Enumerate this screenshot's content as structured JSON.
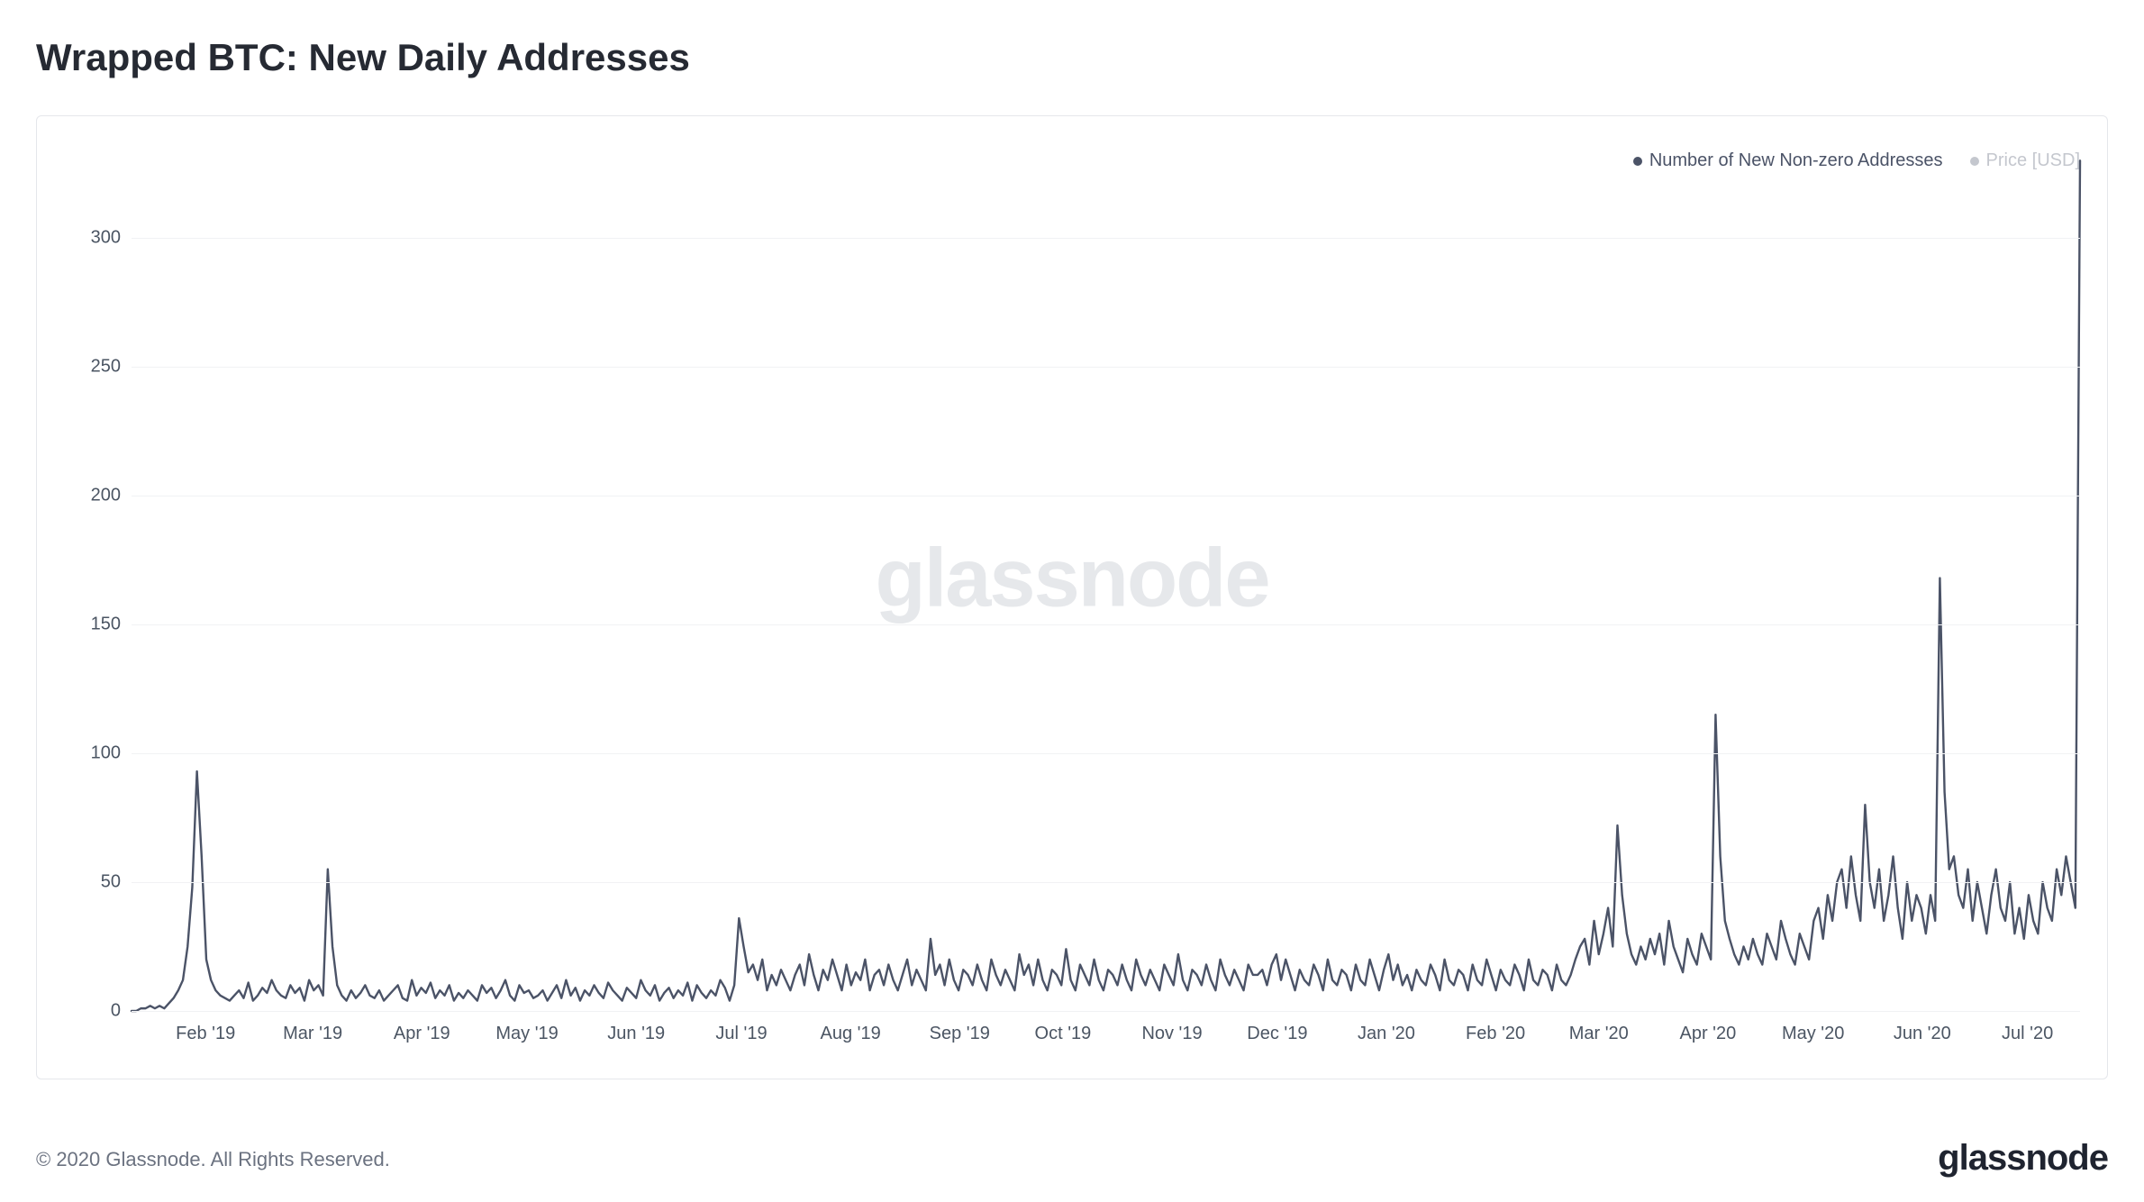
{
  "title": "Wrapped BTC: New Daily Addresses",
  "watermark": "glassnode",
  "legend": {
    "series1": {
      "label": "Number of New Non-zero Addresses",
      "color": "#4b5367"
    },
    "series2": {
      "label": "Price [USD]",
      "color": "#c4c7ce"
    }
  },
  "footer": "© 2020 Glassnode. All Rights Reserved.",
  "brand": "glassnode",
  "chart": {
    "type": "line",
    "line_color": "#4b5367",
    "line_width": 2.4,
    "background_color": "#ffffff",
    "border_color": "#e5e7eb",
    "grid_color": "#f1f2f4",
    "y_axis": {
      "min": 0,
      "max": 335,
      "ticks": [
        0,
        50,
        100,
        150,
        200,
        250,
        300
      ],
      "label_color": "#4b5563",
      "fontsize": 20
    },
    "x_axis": {
      "labels": [
        "Feb '19",
        "Mar '19",
        "Apr '19",
        "May '19",
        "Jun '19",
        "Jul '19",
        "Aug '19",
        "Sep '19",
        "Oct '19",
        "Nov '19",
        "Dec '19",
        "Jan '20",
        "Feb '20",
        "Mar '20",
        "Apr '20",
        "May '20",
        "Jun '20",
        "Jul '20"
      ],
      "positions_pct": [
        3.8,
        9.3,
        14.9,
        20.3,
        25.9,
        31.3,
        36.9,
        42.5,
        47.8,
        53.4,
        58.8,
        64.4,
        70.0,
        75.3,
        80.9,
        86.3,
        91.9,
        97.3
      ],
      "label_color": "#4b5563",
      "fontsize": 20
    },
    "series": [
      0,
      0,
      1,
      1,
      2,
      1,
      2,
      1,
      3,
      5,
      8,
      12,
      25,
      48,
      93,
      60,
      20,
      12,
      8,
      6,
      5,
      4,
      6,
      8,
      5,
      11,
      4,
      6,
      9,
      7,
      12,
      8,
      6,
      5,
      10,
      7,
      9,
      4,
      12,
      8,
      10,
      6,
      55,
      25,
      10,
      6,
      4,
      8,
      5,
      7,
      10,
      6,
      5,
      8,
      4,
      6,
      8,
      10,
      5,
      4,
      12,
      6,
      9,
      7,
      11,
      5,
      8,
      6,
      10,
      4,
      7,
      5,
      8,
      6,
      4,
      10,
      7,
      9,
      5,
      8,
      12,
      6,
      4,
      10,
      7,
      8,
      5,
      6,
      8,
      4,
      7,
      10,
      5,
      12,
      6,
      9,
      4,
      8,
      6,
      10,
      7,
      5,
      11,
      8,
      6,
      4,
      9,
      7,
      5,
      12,
      8,
      6,
      10,
      4,
      7,
      9,
      5,
      8,
      6,
      11,
      4,
      10,
      7,
      5,
      8,
      6,
      12,
      9,
      4,
      10,
      36,
      25,
      15,
      18,
      12,
      20,
      8,
      14,
      10,
      16,
      12,
      8,
      14,
      18,
      10,
      22,
      14,
      8,
      16,
      12,
      20,
      14,
      8,
      18,
      10,
      15,
      12,
      20,
      8,
      14,
      16,
      10,
      18,
      12,
      8,
      14,
      20,
      10,
      16,
      12,
      8,
      28,
      14,
      18,
      10,
      20,
      12,
      8,
      16,
      14,
      10,
      18,
      12,
      8,
      20,
      14,
      10,
      16,
      12,
      8,
      22,
      14,
      18,
      10,
      20,
      12,
      8,
      16,
      14,
      10,
      24,
      12,
      8,
      18,
      14,
      10,
      20,
      12,
      8,
      16,
      14,
      10,
      18,
      12,
      8,
      20,
      14,
      10,
      16,
      12,
      8,
      18,
      14,
      10,
      22,
      12,
      8,
      16,
      14,
      10,
      18,
      12,
      8,
      20,
      14,
      10,
      16,
      12,
      8,
      18,
      14,
      14,
      16,
      10,
      18,
      22,
      12,
      20,
      14,
      8,
      16,
      12,
      10,
      18,
      14,
      8,
      20,
      12,
      10,
      16,
      14,
      8,
      18,
      12,
      10,
      20,
      14,
      8,
      16,
      22,
      12,
      18,
      10,
      14,
      8,
      16,
      12,
      10,
      18,
      14,
      8,
      20,
      12,
      10,
      16,
      14,
      8,
      18,
      12,
      10,
      20,
      14,
      8,
      16,
      12,
      10,
      18,
      14,
      8,
      20,
      12,
      10,
      16,
      14,
      8,
      18,
      12,
      10,
      14,
      20,
      25,
      28,
      18,
      35,
      22,
      30,
      40,
      25,
      72,
      45,
      30,
      22,
      18,
      25,
      20,
      28,
      22,
      30,
      18,
      35,
      25,
      20,
      15,
      28,
      22,
      18,
      30,
      25,
      20,
      115,
      60,
      35,
      28,
      22,
      18,
      25,
      20,
      28,
      22,
      18,
      30,
      25,
      20,
      35,
      28,
      22,
      18,
      30,
      25,
      20,
      35,
      40,
      28,
      45,
      35,
      50,
      55,
      40,
      60,
      45,
      35,
      80,
      50,
      40,
      55,
      35,
      45,
      60,
      40,
      28,
      50,
      35,
      45,
      40,
      30,
      45,
      35,
      168,
      85,
      55,
      60,
      45,
      40,
      55,
      35,
      50,
      40,
      30,
      45,
      55,
      40,
      35,
      50,
      30,
      40,
      28,
      45,
      35,
      30,
      50,
      40,
      35,
      55,
      45,
      60,
      50,
      40,
      330
    ]
  }
}
